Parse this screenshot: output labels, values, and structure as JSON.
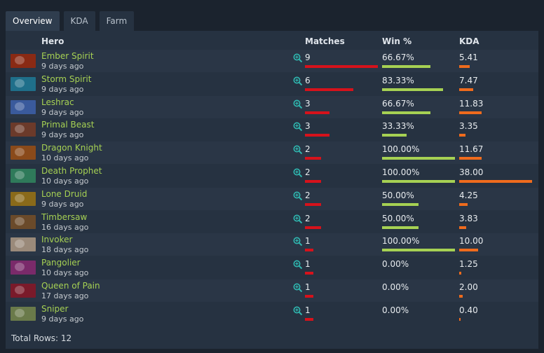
{
  "tabs": [
    "Overview",
    "KDA",
    "Farm"
  ],
  "columns": {
    "hero": "Hero",
    "matches": "Matches",
    "win": "Win %",
    "kda": "KDA"
  },
  "colors": {
    "matches_bar": "#d6121b",
    "win_bar": "#a6d153",
    "kda_bar": "#ef6b1d",
    "hero_name": "#a6d153"
  },
  "icons": {
    "detail": "magnifier-plus-icon"
  },
  "rows": [
    {
      "hero": "Ember Spirit",
      "date": "9 days ago",
      "matches": "9",
      "win": "66.67%",
      "kda": "5.41",
      "matches_val": 9,
      "win_val": 66.67,
      "kda_val": 5.41,
      "avatar_color": "#8a2a14"
    },
    {
      "hero": "Storm Spirit",
      "date": "9 days ago",
      "matches": "6",
      "win": "83.33%",
      "kda": "7.47",
      "matches_val": 6,
      "win_val": 83.33,
      "kda_val": 7.47,
      "avatar_color": "#1f6f8a"
    },
    {
      "hero": "Leshrac",
      "date": "9 days ago",
      "matches": "3",
      "win": "66.67%",
      "kda": "11.83",
      "matches_val": 3,
      "win_val": 66.67,
      "kda_val": 11.83,
      "avatar_color": "#3a5a9c"
    },
    {
      "hero": "Primal Beast",
      "date": "9 days ago",
      "matches": "3",
      "win": "33.33%",
      "kda": "3.35",
      "matches_val": 3,
      "win_val": 33.33,
      "kda_val": 3.35,
      "avatar_color": "#6b3a2a"
    },
    {
      "hero": "Dragon Knight",
      "date": "10 days ago",
      "matches": "2",
      "win": "100.00%",
      "kda": "11.67",
      "matches_val": 2,
      "win_val": 100,
      "kda_val": 11.67,
      "avatar_color": "#8a4a1a"
    },
    {
      "hero": "Death Prophet",
      "date": "10 days ago",
      "matches": "2",
      "win": "100.00%",
      "kda": "38.00",
      "matches_val": 2,
      "win_val": 100,
      "kda_val": 38.0,
      "avatar_color": "#2f7a5a"
    },
    {
      "hero": "Lone Druid",
      "date": "9 days ago",
      "matches": "2",
      "win": "50.00%",
      "kda": "4.25",
      "matches_val": 2,
      "win_val": 50,
      "kda_val": 4.25,
      "avatar_color": "#8a6a1a"
    },
    {
      "hero": "Timbersaw",
      "date": "16 days ago",
      "matches": "2",
      "win": "50.00%",
      "kda": "3.83",
      "matches_val": 2,
      "win_val": 50,
      "kda_val": 3.83,
      "avatar_color": "#6a4a2a"
    },
    {
      "hero": "Invoker",
      "date": "18 days ago",
      "matches": "1",
      "win": "100.00%",
      "kda": "10.00",
      "matches_val": 1,
      "win_val": 100,
      "kda_val": 10.0,
      "avatar_color": "#9a8a7a"
    },
    {
      "hero": "Pangolier",
      "date": "10 days ago",
      "matches": "1",
      "win": "0.00%",
      "kda": "1.25",
      "matches_val": 1,
      "win_val": 0,
      "kda_val": 1.25,
      "avatar_color": "#7a2a6a"
    },
    {
      "hero": "Queen of Pain",
      "date": "17 days ago",
      "matches": "1",
      "win": "0.00%",
      "kda": "2.00",
      "matches_val": 1,
      "win_val": 0,
      "kda_val": 2.0,
      "avatar_color": "#7a1a2a"
    },
    {
      "hero": "Sniper",
      "date": "9 days ago",
      "matches": "1",
      "win": "0.00%",
      "kda": "0.40",
      "matches_val": 1,
      "win_val": 0,
      "kda_val": 0.4,
      "avatar_color": "#6a7a4a"
    }
  ],
  "footer": "Total Rows: 12"
}
